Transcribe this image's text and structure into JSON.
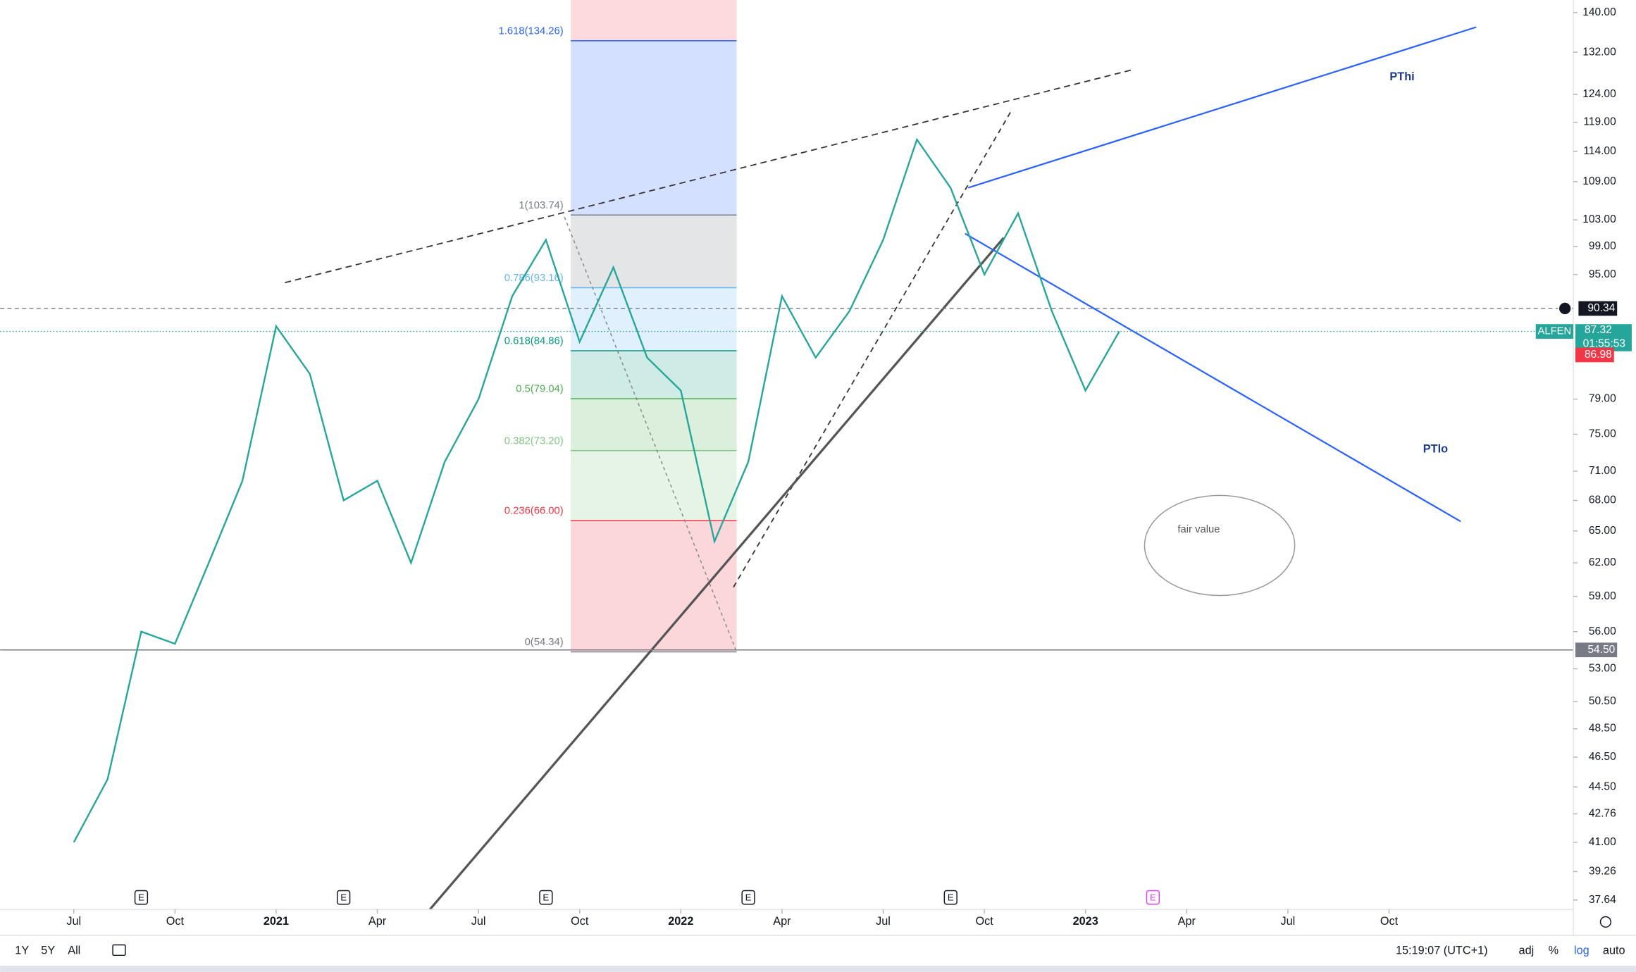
{
  "chart_data": {
    "type": "line",
    "log_scale": true,
    "x": [
      "2020-07",
      "2020-08",
      "2020-09",
      "2020-10",
      "2020-11",
      "2020-12",
      "2021-01",
      "2021-02",
      "2021-03",
      "2021-04",
      "2021-05",
      "2021-06",
      "2021-07",
      "2021-08",
      "2021-09",
      "2021-10",
      "2021-11",
      "2021-12",
      "2022-01",
      "2022-02",
      "2022-03",
      "2022-04",
      "2022-05",
      "2022-06",
      "2022-07",
      "2022-08",
      "2022-09",
      "2022-10",
      "2022-11",
      "2022-12",
      "2023-01",
      "2023-02"
    ],
    "series": [
      {
        "name": "ALFEN",
        "color": "#26a69a",
        "values": [
          41,
          45,
          56,
          55,
          62,
          70,
          88,
          82,
          68,
          70,
          62,
          72,
          79,
          92,
          100,
          86,
          96,
          84,
          80,
          64,
          72,
          92,
          84,
          90,
          100,
          116,
          108,
          95,
          104,
          90,
          80,
          87.32
        ]
      }
    ],
    "xlim": [
      "2020-05",
      "2024-03"
    ],
    "xticks": [
      {
        "value": "2020-07",
        "label": "Jul"
      },
      {
        "value": "2020-10",
        "label": "Oct"
      },
      {
        "value": "2021-01",
        "label": "2021"
      },
      {
        "value": "2021-04",
        "label": "Apr"
      },
      {
        "value": "2021-07",
        "label": "Jul"
      },
      {
        "value": "2021-10",
        "label": "Oct"
      },
      {
        "value": "2022-01",
        "label": "2022"
      },
      {
        "value": "2022-04",
        "label": "Apr"
      },
      {
        "value": "2022-07",
        "label": "Jul"
      },
      {
        "value": "2022-10",
        "label": "Oct"
      },
      {
        "value": "2023-01",
        "label": "2023"
      },
      {
        "value": "2023-04",
        "label": "Apr"
      },
      {
        "value": "2023-07",
        "label": "Jul"
      },
      {
        "value": "2023-10",
        "label": "Oct"
      }
    ],
    "ylim": [
      37.12,
      142.61
    ],
    "yticks": [
      {
        "value": 140,
        "label": "140.00"
      },
      {
        "value": 132,
        "label": "132.00"
      },
      {
        "value": 124,
        "label": "124.00"
      },
      {
        "value": 119,
        "label": "119.00"
      },
      {
        "value": 114,
        "label": "114.00"
      },
      {
        "value": 109,
        "label": "109.00"
      },
      {
        "value": 103,
        "label": "103.00"
      },
      {
        "value": 99,
        "label": "99.00"
      },
      {
        "value": 95,
        "label": "95.00"
      },
      {
        "value": 79,
        "label": "79.00"
      },
      {
        "value": 75,
        "label": "75.00"
      },
      {
        "value": 71,
        "label": "71.00"
      },
      {
        "value": 68,
        "label": "68.00"
      },
      {
        "value": 65,
        "label": "65.00"
      },
      {
        "value": 62,
        "label": "62.00"
      },
      {
        "value": 59,
        "label": "59.00"
      },
      {
        "value": 56,
        "label": "56.00"
      },
      {
        "value": 53,
        "label": "53.00"
      },
      {
        "value": 50.5,
        "label": "50.50"
      },
      {
        "value": 48.5,
        "label": "48.50"
      },
      {
        "value": 46.5,
        "label": "46.50"
      },
      {
        "value": 44.5,
        "label": "44.50"
      },
      {
        "value": 42.76,
        "label": "42.76"
      },
      {
        "value": 41,
        "label": "41.00"
      },
      {
        "value": 39.26,
        "label": "39.26"
      },
      {
        "value": 37.64,
        "label": "37.64"
      }
    ],
    "fib_levels": [
      {
        "value": 134.26,
        "label": "1.618(134.26)",
        "color": "#2962ff"
      },
      {
        "value": 103.74,
        "label": "1(103.74)",
        "color": "#787b86"
      },
      {
        "value": 93.16,
        "label": "0.786(93.16)",
        "color": "#64b5f6"
      },
      {
        "value": 84.86,
        "label": "0.618(84.86)",
        "color": "#089981"
      },
      {
        "value": 79.04,
        "label": "0.5(79.04)",
        "color": "#4caf50"
      },
      {
        "value": 73.2,
        "label": "0.382(73.20)",
        "color": "#81c784"
      },
      {
        "value": 66,
        "label": "0.236(66.00)",
        "color": "#f23645"
      },
      {
        "value": 54.34,
        "label": "0(54.34)",
        "color": "#787b86"
      }
    ],
    "crosshair_price": 90.34,
    "bid_price": 86.98,
    "countdown": "01:55:53",
    "horizontal_line": {
      "value": 54.5,
      "label": "54.50"
    },
    "earnings": [
      "2020-09",
      "2021-03",
      "2021-09",
      "2022-03",
      "2022-09",
      "2023-03"
    ],
    "earnings_label": "E",
    "annotations": {
      "pthi": "PThi",
      "ptlo": "PTlo",
      "fair_value": "fair value"
    }
  },
  "toolbar": {
    "ranges": [
      "1Y",
      "5Y",
      "All"
    ],
    "time": "15:19:07 (UTC+1)",
    "options": [
      "adj",
      "%",
      "log",
      "auto"
    ]
  }
}
